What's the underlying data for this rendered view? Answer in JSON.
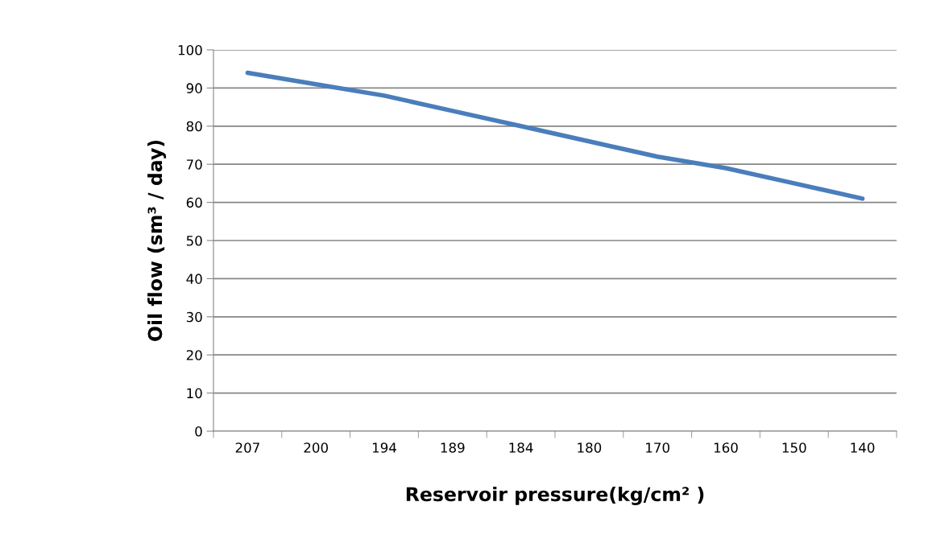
{
  "chart_data": {
    "type": "line",
    "xlabel": "Reservoir pressure(kg/cm² )",
    "ylabel": "Oil flow (sm³ / day)",
    "categories": [
      "207",
      "200",
      "194",
      "189",
      "184",
      "180",
      "170",
      "160",
      "150",
      "140"
    ],
    "series": [
      {
        "color": "#4a7ebb",
        "values": [
          94,
          91,
          88,
          84,
          80,
          76,
          72,
          69,
          65,
          61
        ]
      }
    ],
    "ylim": [
      0,
      100
    ],
    "yticks": [
      0,
      10,
      20,
      30,
      40,
      50,
      60,
      70,
      80,
      90,
      100
    ],
    "grid": "y",
    "legend": false,
    "marker": "none",
    "line_style": "solid"
  }
}
